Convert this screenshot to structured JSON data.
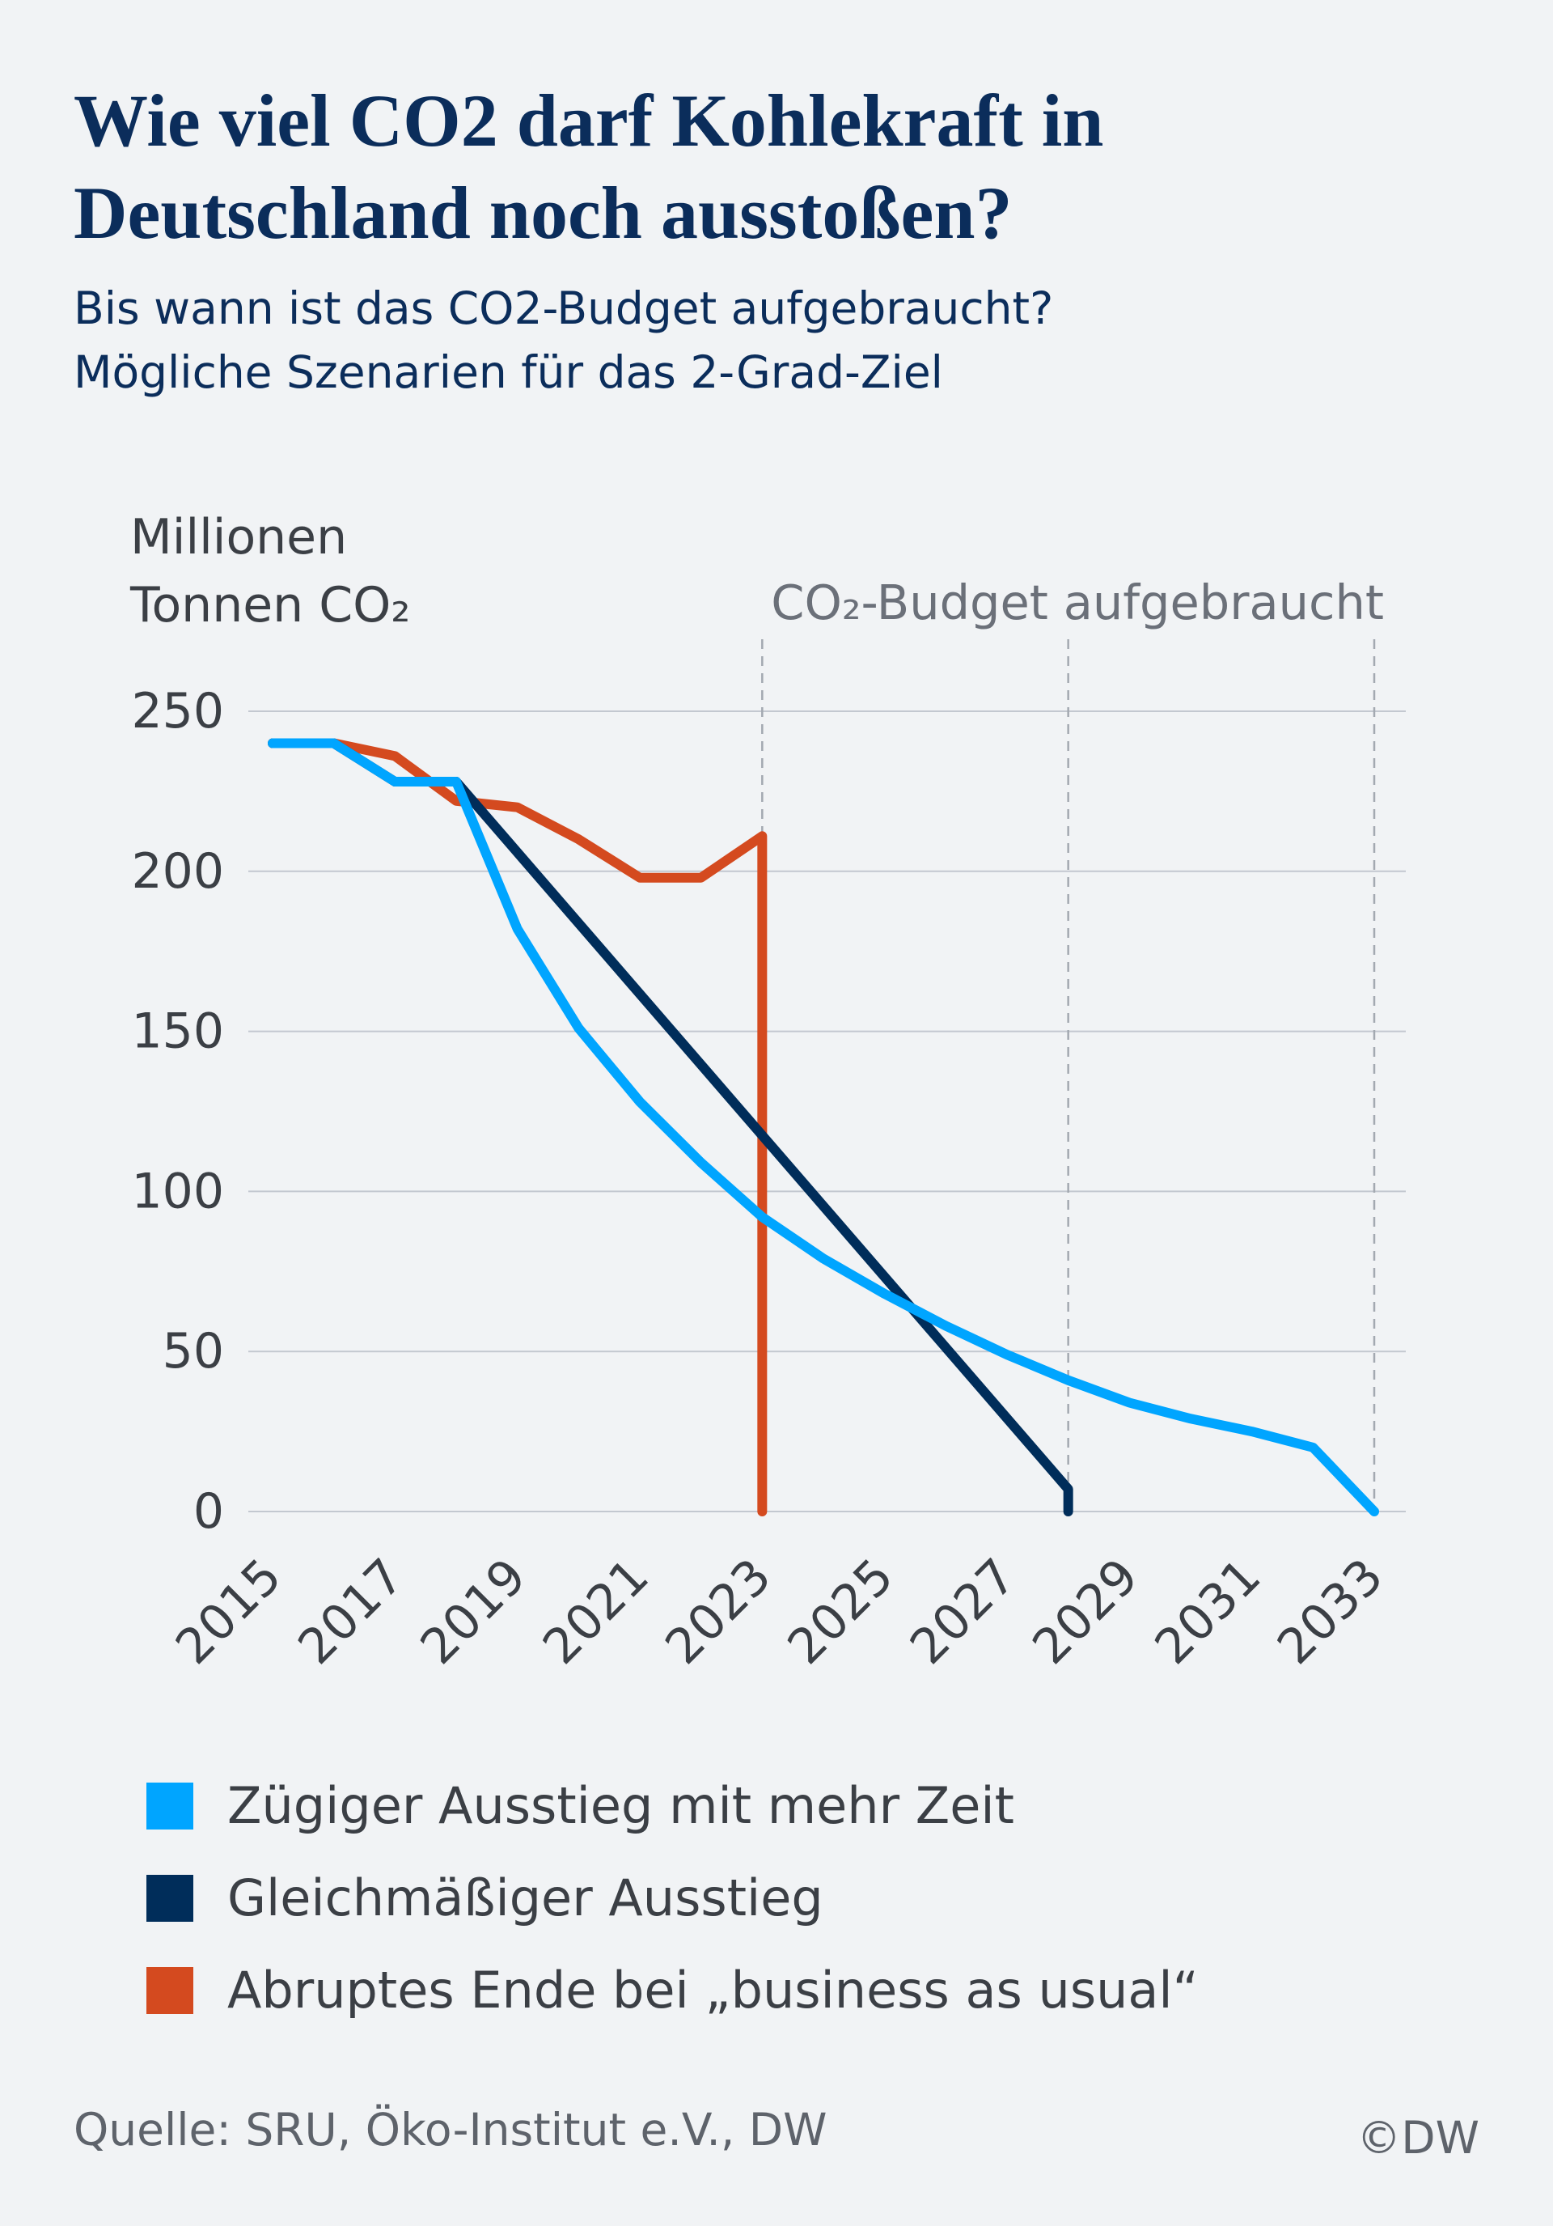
{
  "title": "Wie viel CO2 darf Kohlekraft in Deutschland noch ausstoßen?",
  "subtitle_line1": "Bis wann ist das CO2-Budget aufgebraucht?",
  "subtitle_line2": "Mögliche Szenarien für das 2-Grad-Ziel",
  "source": "Quelle: SRU, Öko-Institut e.V., DW",
  "credit": "©DW",
  "chart_data": {
    "type": "line",
    "ylabel_line1": "Millionen",
    "ylabel_line2": "Tonnen CO₂",
    "xlabel": "",
    "xlim": [
      2015,
      2033
    ],
    "ylim": [
      0,
      250
    ],
    "yticks": [
      0,
      50,
      100,
      150,
      200,
      250
    ],
    "xticks": [
      "2015",
      "2017",
      "2019",
      "2021",
      "2023",
      "2025",
      "2027",
      "2029",
      "2031",
      "2033"
    ],
    "grid": "horizontal",
    "legend_position": "bottom",
    "annotation": "CO₂-Budget aufgebraucht",
    "annotation_lines_x": [
      2023,
      2028,
      2033
    ],
    "series": [
      {
        "name": "Zügiger Ausstieg mit mehr Zeit",
        "color": "#00a5ff",
        "x": [
          2015,
          2016,
          2017,
          2018,
          2019,
          2020,
          2021,
          2022,
          2023,
          2024,
          2025,
          2026,
          2027,
          2028,
          2029,
          2030,
          2031,
          2032,
          2033
        ],
        "y": [
          240,
          240,
          228,
          228,
          182,
          151,
          128,
          109,
          92,
          79,
          68,
          58,
          49,
          41,
          34,
          29,
          25,
          20,
          0
        ]
      },
      {
        "name": "Gleichmäßiger Ausstieg",
        "color": "#002d5a",
        "x": [
          2015,
          2016,
          2017,
          2018,
          2028,
          2028
        ],
        "y": [
          240,
          240,
          228,
          228,
          7,
          0
        ]
      },
      {
        "name": "Abruptes Ende bei „business as usual“",
        "color": "#d44a1f",
        "x": [
          2015,
          2016,
          2017,
          2018,
          2019,
          2020,
          2021,
          2022,
          2023,
          2023
        ],
        "y": [
          240,
          240,
          236,
          222,
          220,
          210,
          198,
          198,
          211,
          0
        ]
      }
    ]
  }
}
